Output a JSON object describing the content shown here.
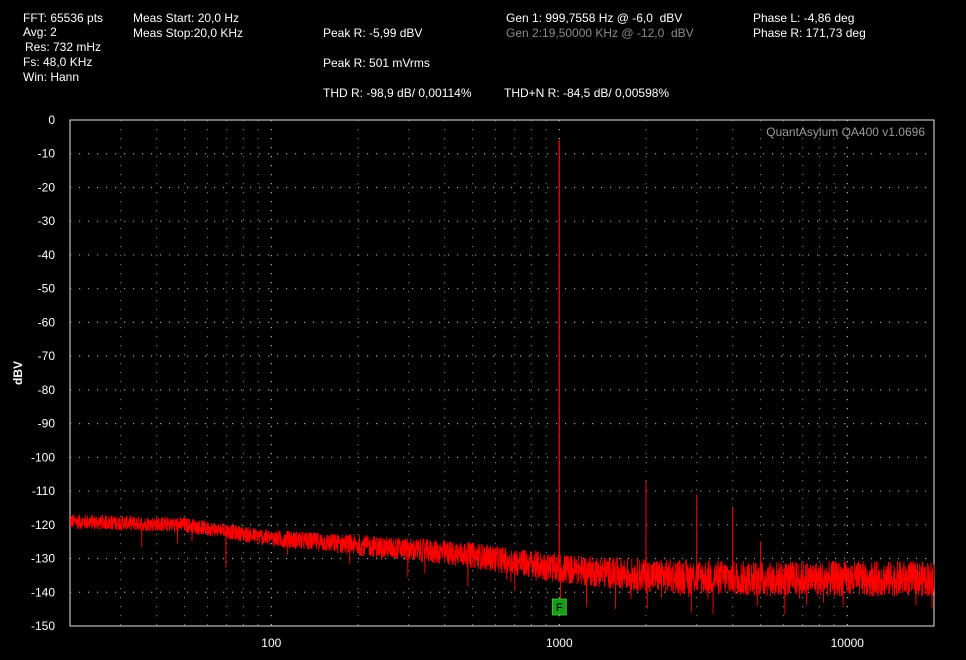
{
  "header": {
    "fft": "FFT: 65536 pts",
    "avg": "Avg: 2",
    "res": "Res: 732 mHz",
    "fs": "Fs: 48,0 KHz",
    "win": "Win: Hann",
    "meas_start": "Meas Start: 20,0 Hz",
    "meas_stop": "Meas Stop:20,0 KHz",
    "peak_r_dbv": "Peak R: -5,99 dBV",
    "peak_r_rms": "Peak R: 501 mVrms",
    "thd_r": "THD R: -98,9 dB/ 0,00114%",
    "thdn_r": "THD+N R: -84,5 dB/ 0,00598%",
    "gen1": "Gen 1: 999,7558 Hz @ -6,0  dBV",
    "gen2": "Gen 2:19,50000 KHz @ -12,0  dBV",
    "phase_l": "Phase L: -4,86 deg",
    "phase_r": "Phase R: 171,73 deg"
  },
  "watermark": "QuantAsylum QA400 v1.0696",
  "marker_label": "F",
  "colors": {
    "trace": "#ff0000",
    "grid": "#c8c8c8",
    "marker": "#1a9a1a",
    "dim_text": "#8a8a8a"
  },
  "chart_data": {
    "type": "line",
    "xlabel": "",
    "ylabel": "dBV",
    "x_scale": "log",
    "xlim": [
      20,
      20000
    ],
    "ylim": [
      -150,
      0
    ],
    "grid": true,
    "x_ticks": [
      100,
      1000,
      10000
    ],
    "x_tick_labels": [
      "100",
      "1000",
      "10000"
    ],
    "y_ticks": [
      0,
      -10,
      -20,
      -30,
      -40,
      -50,
      -60,
      -70,
      -80,
      -90,
      -100,
      -110,
      -120,
      -130,
      -140,
      -150
    ],
    "y_tick_labels": [
      "0",
      "-10",
      "-20",
      "-30",
      "-40",
      "-50",
      "-60",
      "-70",
      "-80",
      "-90",
      "-100",
      "-110",
      "-120",
      "-130",
      "-140",
      "-150"
    ],
    "series": [
      {
        "color": "#ff0000",
        "noise_floor": [
          [
            20,
            -119
          ],
          [
            50,
            -120
          ],
          [
            100,
            -124
          ],
          [
            200,
            -126
          ],
          [
            500,
            -129
          ],
          [
            1000,
            -133
          ],
          [
            2000,
            -135
          ],
          [
            5000,
            -136
          ],
          [
            10000,
            -136
          ],
          [
            20000,
            -136
          ]
        ],
        "peaks": [
          {
            "x": 999.76,
            "y": -6
          },
          {
            "x": 2000,
            "y": -107
          },
          {
            "x": 3000,
            "y": -111
          },
          {
            "x": 4000,
            "y": -115
          },
          {
            "x": 5000,
            "y": -125
          }
        ]
      }
    ],
    "markers": [
      {
        "x": 1000,
        "label": "F"
      }
    ]
  }
}
